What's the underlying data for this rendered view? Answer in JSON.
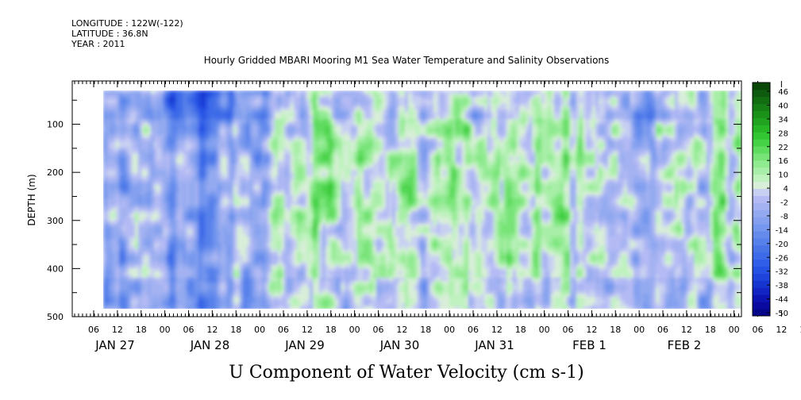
{
  "header": {
    "longitude": "LONGITUDE : 122W(-122)",
    "latitude": "LATITUDE : 36.8N",
    "year": "YEAR : 2011"
  },
  "chart_data": {
    "type": "heatmap",
    "title": "Hourly Gridded MBARI Mooring M1 Sea Water Temperature and Salinity Observations",
    "xlabel": "U Component of Water Velocity (cm s-1)",
    "ylabel": "DEPTH (m)",
    "y_reversed": true,
    "ylim": [
      500,
      10
    ],
    "y_ticks": [
      100,
      200,
      300,
      400,
      500
    ],
    "x_hour_ticks": [
      "06",
      "12",
      "18",
      "00",
      "06",
      "12",
      "18",
      "00",
      "06",
      "12",
      "18",
      "00",
      "06",
      "12",
      "18",
      "00",
      "06",
      "12",
      "18",
      "00",
      "06",
      "12",
      "18",
      "00",
      "06",
      "12",
      "18",
      "00",
      "06",
      "12",
      "18",
      "00"
    ],
    "x_day_labels": [
      "JAN 27",
      "JAN 28",
      "JAN 29",
      "JAN 30",
      "JAN 31",
      "FEB  1",
      "FEB  2"
    ],
    "colorbar": {
      "labels": [
        "46",
        "40",
        "34",
        "28",
        "22",
        "16",
        "10",
        "4",
        "-2",
        "-8",
        "-14",
        "-20",
        "-26",
        "-32",
        "-38",
        "-44",
        "-50"
      ],
      "min": -50,
      "max": 49,
      "colors": {
        "dark_blue": "#06068a",
        "mid_blue": "#2a5ae0",
        "light_blue": "#a8acf0",
        "pale": "#d4f0d4",
        "light_green": "#8cec8c",
        "green": "#2ec82e",
        "dark_green": "#0c4a0c"
      }
    },
    "data_summary": {
      "range_shown": "approx -40 to 25 cm s-1",
      "columns": [
        {
          "time": "JAN 27 06",
          "mean": -4
        },
        {
          "time": "JAN 27 18",
          "mean": -6
        },
        {
          "time": "JAN 28 06",
          "mean": -14
        },
        {
          "time": "JAN 28 18",
          "mean": -3
        },
        {
          "time": "JAN 29 06",
          "mean": 8
        },
        {
          "time": "JAN 29 18",
          "mean": 4
        },
        {
          "time": "JAN 30 06",
          "mean": 6
        },
        {
          "time": "JAN 30 18",
          "mean": 4
        },
        {
          "time": "JAN 31 06",
          "mean": 14
        },
        {
          "time": "JAN 31 18",
          "mean": 8
        },
        {
          "time": "FEB 1 06",
          "mean": 3
        },
        {
          "time": "FEB 1 18",
          "mean": -3
        },
        {
          "time": "FEB 2 06",
          "mean": 2
        },
        {
          "time": "FEB 2 18",
          "mean": 6
        }
      ]
    },
    "grid": false
  }
}
